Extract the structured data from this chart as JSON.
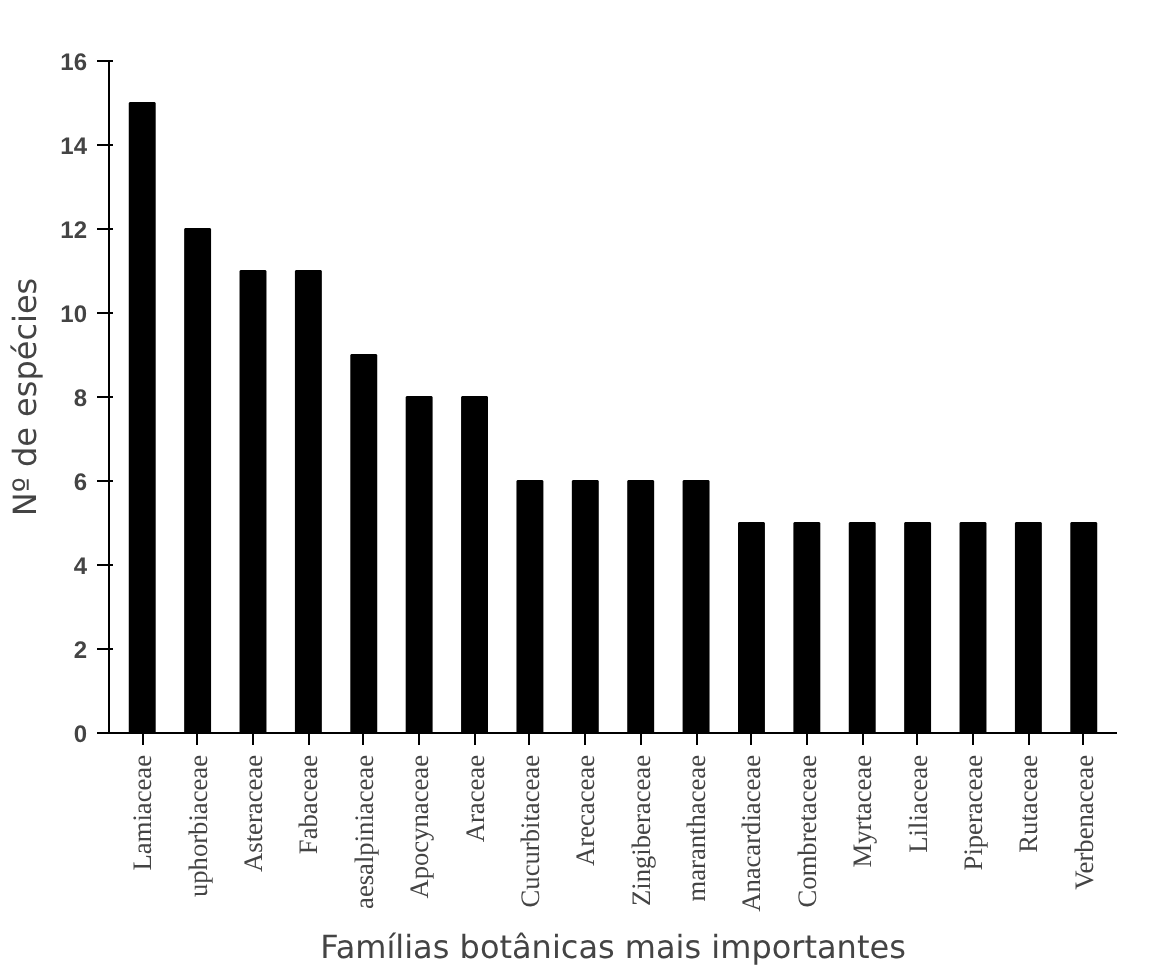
{
  "chart_data": {
    "type": "bar",
    "xlabel": "Famílias botânicas mais importantes",
    "ylabel": "Nº de espécies",
    "categories": [
      "Lamiaceae",
      "uphorbiaceae",
      "Asteraceae",
      "Fabaceae",
      "aesalpiniaceae",
      "Apocynaceae",
      "Araceae",
      "Cucurbitaceae",
      "Arecaceae",
      "Zingiberaceae",
      "maranthaceae",
      "Anacardiaceae",
      "Combretaceae",
      "Myrtaceae",
      "Liliaceae",
      "Piperaceae",
      "Rutaceae",
      "Verbenaceae"
    ],
    "values": [
      15,
      12,
      11,
      11,
      9,
      8,
      8,
      6,
      6,
      6,
      6,
      5,
      5,
      5,
      5,
      5,
      5,
      5
    ],
    "color": "#000000",
    "ylim": [
      0,
      16
    ],
    "yticks": [
      0,
      2,
      4,
      6,
      8,
      10,
      12,
      14,
      16
    ],
    "grid": false
  }
}
